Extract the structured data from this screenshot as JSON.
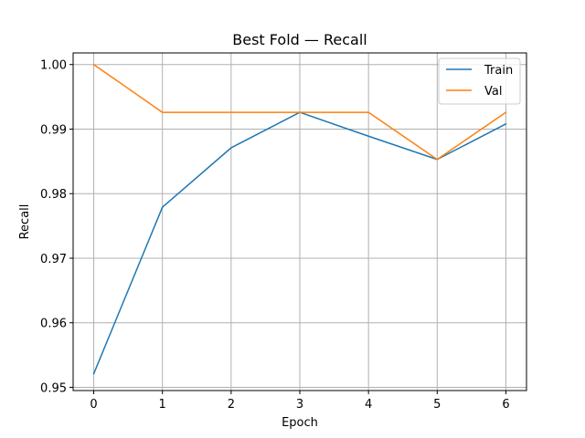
{
  "chart_data": {
    "type": "line",
    "title": "Best Fold — Recall",
    "xlabel": "Epoch",
    "ylabel": "Recall",
    "x": [
      0,
      1,
      2,
      3,
      4,
      5,
      6
    ],
    "xticks": [
      "0",
      "1",
      "2",
      "3",
      "4",
      "5",
      "6"
    ],
    "yticks": [
      "0.95",
      "0.96",
      "0.97",
      "0.98",
      "0.99",
      "1.00"
    ],
    "xlim": [
      -0.3,
      6.3
    ],
    "ylim": [
      0.9495,
      1.0018
    ],
    "grid": true,
    "legend_position": "top-right",
    "series": [
      {
        "name": "Train",
        "color": "#1f77b4",
        "values": [
          0.9521,
          0.9779,
          0.9871,
          0.9926,
          0.9889,
          0.9853,
          0.9908
        ]
      },
      {
        "name": "Val",
        "color": "#ff7f0e",
        "values": [
          1.0,
          0.9926,
          0.9926,
          0.9926,
          0.9926,
          0.9853,
          0.9926
        ]
      }
    ]
  }
}
